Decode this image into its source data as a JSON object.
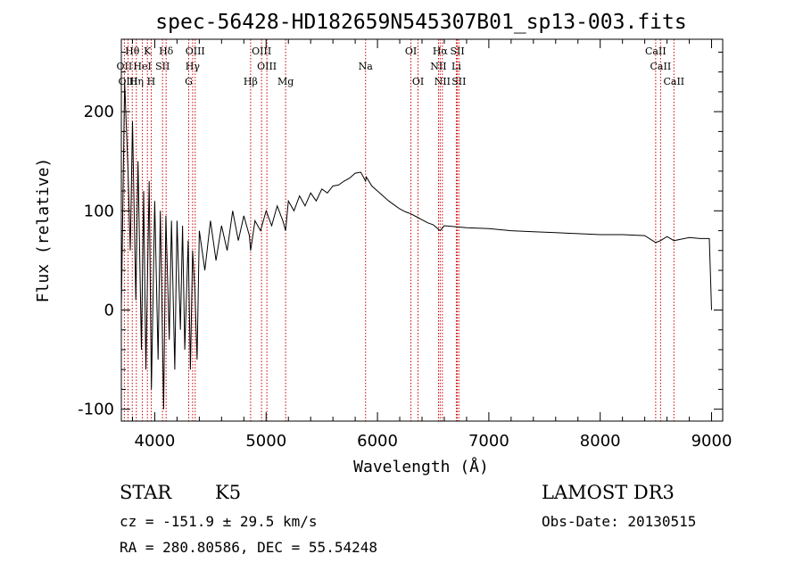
{
  "chart_data": {
    "type": "line",
    "title": "spec-56428-HD182659N545307B01_sp13-003.fits",
    "xlabel": "Wavelength (Å)",
    "ylabel": "Flux (relative)",
    "xlim": [
      3700,
      9100
    ],
    "ylim": [
      -112,
      273
    ],
    "xticks": [
      "4000",
      "5000",
      "6000",
      "7000",
      "8000",
      "9000"
    ],
    "yticks": [
      "-100",
      "0",
      "100",
      "200"
    ],
    "series": [
      {
        "name": "spectrum",
        "x": [
          3700,
          3730,
          3760,
          3780,
          3800,
          3830,
          3850,
          3880,
          3900,
          3920,
          3950,
          3970,
          4000,
          4030,
          4050,
          4080,
          4100,
          4130,
          4150,
          4180,
          4200,
          4230,
          4250,
          4270,
          4300,
          4320,
          4340,
          4360,
          4380,
          4400,
          4450,
          4500,
          4550,
          4600,
          4650,
          4700,
          4750,
          4800,
          4850,
          4861,
          4900,
          4950,
          5000,
          5050,
          5100,
          5150,
          5175,
          5200,
          5250,
          5300,
          5350,
          5400,
          5450,
          5500,
          5550,
          5600,
          5650,
          5700,
          5750,
          5800,
          5850,
          5893,
          5900,
          5950,
          6000,
          6050,
          6100,
          6150,
          6200,
          6250,
          6300,
          6350,
          6400,
          6450,
          6500,
          6563,
          6600,
          6700,
          6800,
          7000,
          7200,
          7400,
          7600,
          7800,
          8000,
          8200,
          8400,
          8498,
          8542,
          8600,
          8662,
          8800,
          8900,
          8980,
          9000
        ],
        "y": [
          0,
          230,
          140,
          60,
          190,
          10,
          150,
          -40,
          120,
          -60,
          130,
          -80,
          110,
          -50,
          100,
          -100,
          95,
          -30,
          90,
          -60,
          90,
          -20,
          85,
          -40,
          70,
          -60,
          60,
          20,
          -50,
          80,
          40,
          90,
          50,
          85,
          60,
          100,
          70,
          95,
          75,
          60,
          90,
          80,
          100,
          85,
          105,
          90,
          80,
          110,
          100,
          115,
          105,
          118,
          110,
          122,
          118,
          125,
          126,
          130,
          133,
          138,
          139,
          130,
          134,
          125,
          120,
          115,
          110,
          106,
          102,
          99,
          97,
          94,
          91,
          88,
          86,
          80,
          85,
          84,
          83,
          82,
          80,
          79,
          78,
          77,
          76,
          76,
          75,
          68,
          70,
          74,
          70,
          73,
          72,
          72,
          0
        ]
      }
    ],
    "lines": [
      {
        "label": "Hθ",
        "x": 3798,
        "row": 1
      },
      {
        "label": "K",
        "x": 3934,
        "row": 1
      },
      {
        "label": "Hδ",
        "x": 4102,
        "row": 1
      },
      {
        "label": "OIII",
        "x": 4363,
        "row": 1
      },
      {
        "label": "OIII",
        "x": 4959,
        "row": 1
      },
      {
        "label": "OI",
        "x": 6300,
        "row": 1
      },
      {
        "label": "Hα",
        "x": 6563,
        "row": 1
      },
      {
        "label": "SII",
        "x": 6717,
        "row": 1
      },
      {
        "label": "CaII",
        "x": 8498,
        "row": 1
      },
      {
        "label": "OII",
        "x": 3727,
        "row": 2
      },
      {
        "label": "HeI",
        "x": 3889,
        "row": 2
      },
      {
        "label": "SII",
        "x": 4070,
        "row": 2
      },
      {
        "label": "Hγ",
        "x": 4340,
        "row": 2
      },
      {
        "label": "OIII",
        "x": 5007,
        "row": 2
      },
      {
        "label": "Na",
        "x": 5893,
        "row": 2
      },
      {
        "label": "NII",
        "x": 6548,
        "row": 2
      },
      {
        "label": "Li",
        "x": 6708,
        "row": 2
      },
      {
        "label": "CaII",
        "x": 8542,
        "row": 2
      },
      {
        "label": "OIII",
        "x": 3760,
        "row": 3
      },
      {
        "label": "Hη",
        "x": 3835,
        "row": 3
      },
      {
        "label": "H",
        "x": 3968,
        "row": 3
      },
      {
        "label": "G",
        "x": 4305,
        "row": 3
      },
      {
        "label": "Hβ",
        "x": 4861,
        "row": 3
      },
      {
        "label": "Mg",
        "x": 5175,
        "row": 3
      },
      {
        "label": "OI",
        "x": 6364,
        "row": 3
      },
      {
        "label": "NII",
        "x": 6583,
        "row": 3
      },
      {
        "label": "SII",
        "x": 6731,
        "row": 3
      },
      {
        "label": "CaII",
        "x": 8662,
        "row": 3
      }
    ]
  },
  "info": {
    "object_class": "STAR",
    "subclass": "K5",
    "survey": "LAMOST DR3",
    "velocity": "cz = -151.9 ± 29.5 km/s",
    "obs_date": "Obs-Date: 20130515",
    "coords": "RA = 280.80586, DEC =  55.54248"
  },
  "colors": {
    "axis": "#000000",
    "spectrum": "#000000",
    "line_marker": "#cc0000"
  }
}
